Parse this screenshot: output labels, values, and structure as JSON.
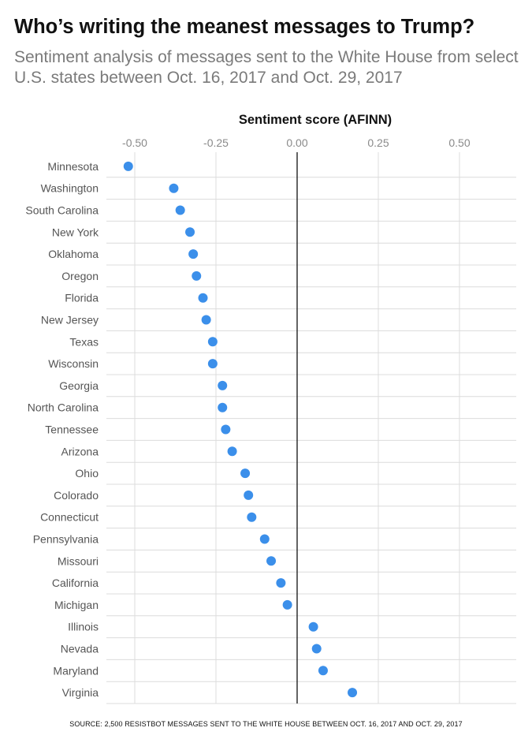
{
  "title": "Who’s writing the meanest messages to Trump?",
  "subtitle": "Sentiment analysis of messages sent to the White House from select U.S. states between Oct. 16, 2017 and Oct. 29, 2017",
  "source": "SOURCE: 2,500 RESISTBOT MESSAGES SENT TO THE WHITE HOUSE BETWEEN OCT. 16, 2017 AND OCT. 29, 2017",
  "colors": {
    "point": "#3b8fea",
    "grid": "#dcdcdc",
    "zero_line": "#111111",
    "tick_text": "#8a8a8a",
    "category_text": "#555555"
  },
  "chart_data": {
    "type": "scatter",
    "title": "",
    "xlabel": "Sentiment score (AFINN)",
    "ylabel": "",
    "xlim": [
      -0.57,
      0.68
    ],
    "xticks": [
      -0.5,
      -0.25,
      0.0,
      0.25,
      0.5
    ],
    "xtick_labels": [
      "-0.50",
      "-0.25",
      "0.00",
      "0.25",
      "0.50"
    ],
    "axis_position": "top",
    "grid": true,
    "categories": [
      "Minnesota",
      "Washington",
      "South Carolina",
      "New York",
      "Oklahoma",
      "Oregon",
      "Florida",
      "New Jersey",
      "Texas",
      "Wisconsin",
      "Georgia",
      "North Carolina",
      "Tennessee",
      "Arizona",
      "Ohio",
      "Colorado",
      "Connecticut",
      "Pennsylvania",
      "Missouri",
      "California",
      "Michigan",
      "Illinois",
      "Nevada",
      "Maryland",
      "Virginia"
    ],
    "values": [
      -0.52,
      -0.38,
      -0.36,
      -0.33,
      -0.32,
      -0.31,
      -0.29,
      -0.28,
      -0.26,
      -0.26,
      -0.23,
      -0.23,
      -0.22,
      -0.2,
      -0.16,
      -0.15,
      -0.14,
      -0.1,
      -0.08,
      -0.05,
      -0.03,
      0.05,
      0.06,
      0.08,
      0.17
    ]
  }
}
